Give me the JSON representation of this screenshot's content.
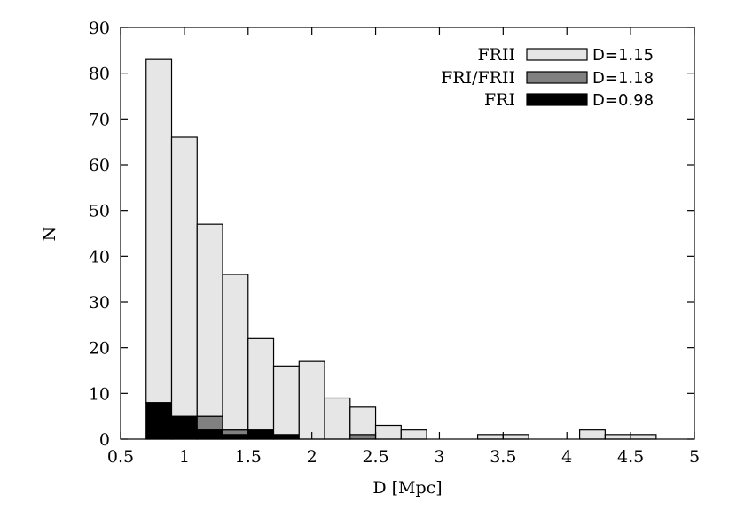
{
  "chart_data": {
    "type": "bar",
    "stacked": true,
    "xlabel": "D [Mpc]",
    "ylabel": "N",
    "xlim": [
      0.5,
      5
    ],
    "ylim": [
      0,
      90
    ],
    "xticks": [
      "0.5",
      "1",
      "1.5",
      "2",
      "2.5",
      "3",
      "3.5",
      "4",
      "4.5",
      "5"
    ],
    "yticks": [
      "0",
      "10",
      "20",
      "30",
      "40",
      "50",
      "60",
      "70",
      "80",
      "90"
    ],
    "grid": false,
    "legend_position": "top-right",
    "bin_width": 0.2,
    "bin_starts": [
      0.7,
      0.9,
      1.1,
      1.3,
      1.5,
      1.7,
      1.9,
      2.1,
      2.3,
      2.5,
      2.7,
      2.9,
      3.1,
      3.3,
      3.5,
      3.7,
      3.9,
      4.1,
      4.3,
      4.5
    ],
    "series": [
      {
        "name": "FRI",
        "note": "D=0.98",
        "color": "#000000",
        "values": [
          8,
          5,
          2,
          1,
          2,
          1,
          0,
          0,
          0,
          0,
          0,
          0,
          0,
          0,
          0,
          0,
          0,
          0,
          0,
          0
        ]
      },
      {
        "name": "FRI/FRII",
        "note": "D=1.18",
        "color": "#808080",
        "values": [
          0,
          0,
          3,
          1,
          0,
          0,
          0,
          0,
          1,
          0,
          0,
          0,
          0,
          0,
          0,
          0,
          0,
          0,
          0,
          0
        ]
      },
      {
        "name": "FRII",
        "note": "D=1.15",
        "color": "#e6e6e6",
        "values": [
          75,
          61,
          42,
          34,
          20,
          15,
          17,
          9,
          6,
          3,
          2,
          0,
          0,
          1,
          1,
          0,
          0,
          2,
          1,
          1
        ]
      }
    ],
    "legend_order": [
      "FRII",
      "FRI/FRII",
      "FRI"
    ]
  }
}
